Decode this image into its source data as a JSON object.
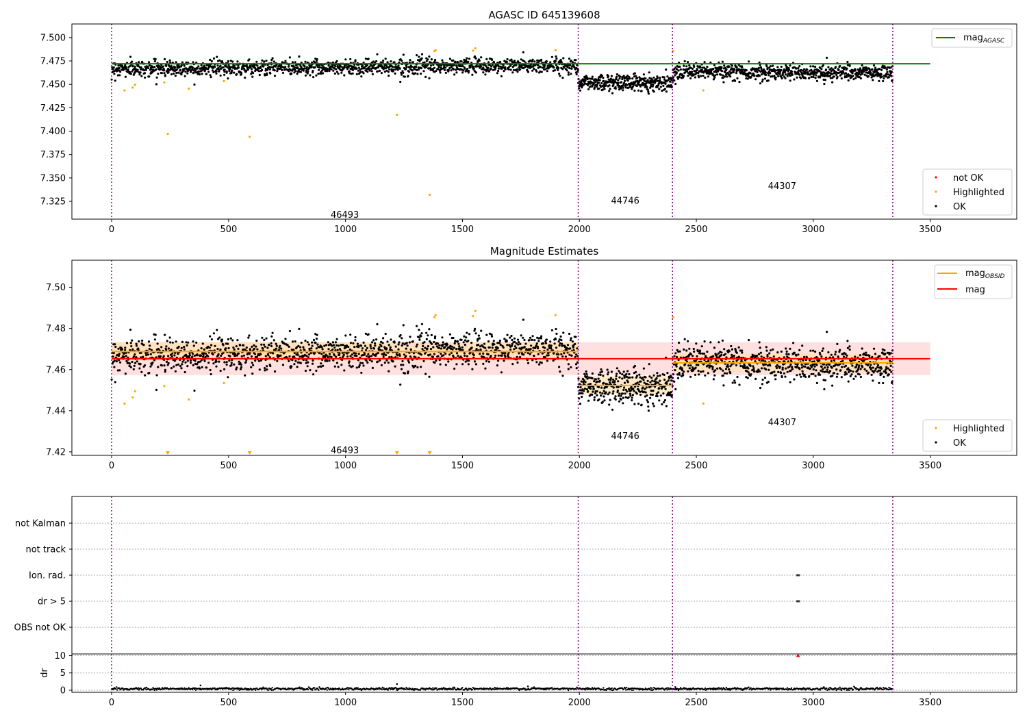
{
  "figure": {
    "width": 1500,
    "height": 1050
  },
  "colors": {
    "ok": "#000000",
    "highlighted": "#ffa500",
    "not_ok": "#ff0000",
    "agasc": "#008000",
    "obsid_line": "#ffa500",
    "mag_line": "#ff0000",
    "divider": "#800080",
    "band_red": "#ffcccc",
    "band_orange": "#ffe0b0"
  },
  "chart_data": [
    {
      "type": "scatter",
      "title": "AGASC ID 645139608",
      "xlim": [
        -170,
        3870
      ],
      "ylim": [
        7.306,
        7.5145
      ],
      "x_ticks": [
        0,
        500,
        1000,
        1500,
        2000,
        2500,
        3000,
        3500
      ],
      "x_tick_labels": [
        "0",
        "500",
        "1000",
        "1500",
        "2000",
        "2500",
        "3000",
        "3500"
      ],
      "y_ticks": [
        7.325,
        7.35,
        7.375,
        7.4,
        7.425,
        7.45,
        7.475,
        7.5
      ],
      "y_tick_labels": [
        "7.325",
        "7.350",
        "7.375",
        "7.400",
        "7.425",
        "7.450",
        "7.475",
        "7.500"
      ],
      "obsid_boundaries": [
        0,
        1995,
        2398,
        3340
      ],
      "obsid_labels": [
        {
          "text": "46493",
          "x": 997,
          "y": 7.3105
        },
        {
          "text": "44746",
          "x": 2196,
          "y": 7.3255
        },
        {
          "text": "44307",
          "x": 2867,
          "y": 7.341
        }
      ],
      "mag_agasc": {
        "value": 7.472,
        "x_range": [
          0,
          3500
        ]
      },
      "segments": [
        {
          "x0": 0,
          "x1": 1995,
          "n": 1350,
          "mean": 7.4685,
          "sd": 0.0042,
          "trend": 0.0035
        },
        {
          "x0": 1995,
          "x1": 2398,
          "n": 330,
          "mean": 7.452,
          "sd": 0.0043,
          "trend": 0.0
        },
        {
          "x0": 2398,
          "x1": 3340,
          "n": 700,
          "mean": 7.463,
          "sd": 0.0042,
          "trend": -0.002
        }
      ],
      "highlighted_points": [
        [
          55,
          7.4435
        ],
        [
          90,
          7.4465
        ],
        [
          100,
          7.4495
        ],
        [
          225,
          7.452
        ],
        [
          240,
          7.397
        ],
        [
          330,
          7.4455
        ],
        [
          480,
          7.4535
        ],
        [
          590,
          7.394
        ],
        [
          1220,
          7.4175
        ],
        [
          1360,
          7.332
        ],
        [
          1380,
          7.4855
        ],
        [
          1385,
          7.4865
        ],
        [
          1545,
          7.486
        ],
        [
          1555,
          7.4885
        ],
        [
          1898,
          7.4865
        ],
        [
          2401,
          7.4855
        ],
        [
          2530,
          7.4435
        ]
      ],
      "legend_top": [
        {
          "label": "mag_AGASC",
          "kind": "line"
        }
      ],
      "legend_bottom": [
        {
          "label": "not OK",
          "kind": "dot"
        },
        {
          "label": "Highlighted",
          "kind": "dot"
        },
        {
          "label": "OK",
          "kind": "dot"
        }
      ]
    },
    {
      "type": "scatter",
      "title": "Magnitude Estimates",
      "xlim": [
        -170,
        3870
      ],
      "ylim": [
        7.4183,
        7.5132
      ],
      "x_ticks": [
        0,
        500,
        1000,
        1500,
        2000,
        2500,
        3000,
        3500
      ],
      "x_tick_labels": [
        "0",
        "500",
        "1000",
        "1500",
        "2000",
        "2500",
        "3000",
        "3500"
      ],
      "y_ticks": [
        7.42,
        7.44,
        7.46,
        7.48,
        7.5
      ],
      "y_tick_labels": [
        "7.42",
        "7.44",
        "7.46",
        "7.48",
        "7.50"
      ],
      "obsid_boundaries": [
        0,
        1995,
        2398,
        3340
      ],
      "obsid_labels": [
        {
          "text": "46493",
          "x": 997,
          "y": 7.4206
        },
        {
          "text": "44746",
          "x": 2196,
          "y": 7.4276
        },
        {
          "text": "44307",
          "x": 2867,
          "y": 7.4343
        }
      ],
      "mag": {
        "value": 7.4653,
        "band": [
          7.4573,
          7.4733
        ],
        "x_range": [
          0,
          3500
        ]
      },
      "mag_obsid": [
        {
          "x0": 0,
          "x1": 1995,
          "value": 7.4688,
          "band": [
            7.4642,
            7.4734
          ]
        },
        {
          "x0": 1995,
          "x1": 2398,
          "value": 7.4523,
          "band": [
            7.4478,
            7.4568
          ]
        },
        {
          "x0": 2398,
          "x1": 3340,
          "value": 7.4633,
          "band": [
            7.459,
            7.4676
          ]
        }
      ],
      "highlighted_points": [
        [
          55,
          7.4435
        ],
        [
          90,
          7.4465
        ],
        [
          100,
          7.4495
        ],
        [
          225,
          7.452
        ],
        [
          330,
          7.4455
        ],
        [
          480,
          7.4535
        ],
        [
          1380,
          7.4855
        ],
        [
          1385,
          7.4865
        ],
        [
          1545,
          7.486
        ],
        [
          1555,
          7.4885
        ],
        [
          1898,
          7.4865
        ],
        [
          2401,
          7.4855
        ],
        [
          2530,
          7.4435
        ]
      ],
      "below_axis_markers": [
        240,
        590,
        1220,
        1360
      ],
      "legend_top": [
        {
          "label": "mag_OBSID",
          "kind": "line"
        },
        {
          "label": "mag",
          "kind": "line"
        }
      ],
      "legend_bottom": [
        {
          "label": "Highlighted",
          "kind": "dot"
        },
        {
          "label": "OK",
          "kind": "dot"
        }
      ]
    },
    {
      "type": "scatter",
      "title": "",
      "xlim": [
        -170,
        3870
      ],
      "flag_rows": [
        "not Kalman",
        "not track",
        "Ion. rad.",
        "dr > 5",
        "OBS not OK"
      ],
      "flag_points": [
        {
          "row": "Ion. rad.",
          "x": 2935
        },
        {
          "row": "dr > 5",
          "x": 2935
        }
      ],
      "obsid_boundaries": [
        0,
        1995,
        2398,
        3340
      ]
    },
    {
      "type": "scatter",
      "title": "",
      "ylabel": "dr",
      "xlim": [
        -170,
        3870
      ],
      "ylim": [
        -0.6,
        10.5
      ],
      "x_ticks": [
        0,
        500,
        1000,
        1500,
        2000,
        2500,
        3000,
        3500
      ],
      "x_tick_labels": [
        "0",
        "500",
        "1000",
        "1500",
        "2000",
        "2500",
        "3000",
        "3500"
      ],
      "y_ticks": [
        0,
        5,
        10
      ],
      "y_tick_labels": [
        "0",
        "5",
        "10"
      ],
      "obsid_boundaries": [
        0,
        1995,
        2398,
        3340
      ],
      "dr_typical": 0.4,
      "dr_outliers": [
        [
          380,
          1.4
        ],
        [
          1220,
          1.8
        ],
        [
          1780,
          1.1
        ],
        [
          2410,
          0.9
        ]
      ],
      "clipped_marker": {
        "x": 2935,
        "y": 10
      }
    }
  ]
}
